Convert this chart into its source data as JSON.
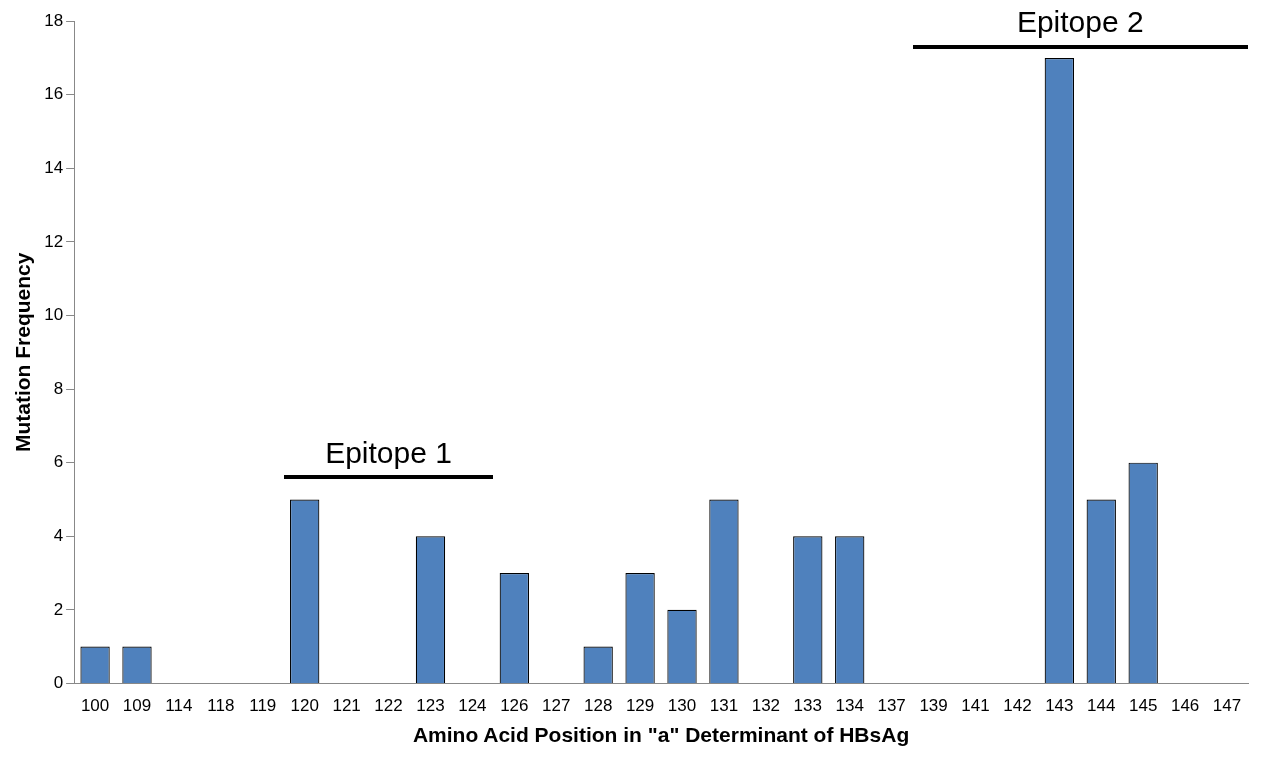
{
  "chart_data": {
    "type": "bar",
    "xlabel": "Amino Acid Position in \"a\" Determinant of HBsAg",
    "ylabel": "Mutation Frequency",
    "categories": [
      "100",
      "109",
      "114",
      "118",
      "119",
      "120",
      "121",
      "122",
      "123",
      "124",
      "126",
      "127",
      "128",
      "129",
      "130",
      "131",
      "132",
      "133",
      "134",
      "137",
      "139",
      "141",
      "142",
      "143",
      "144",
      "145",
      "146",
      "147"
    ],
    "values": [
      1,
      1,
      0,
      0,
      0,
      5,
      0,
      0,
      4,
      0,
      3,
      0,
      1,
      3,
      2,
      5,
      0,
      4,
      4,
      0,
      0,
      0,
      0,
      17,
      5,
      6,
      0,
      0
    ],
    "color": "#4f81bd",
    "ylim": [
      0,
      18
    ],
    "yticks": [
      0,
      2,
      4,
      6,
      8,
      10,
      12,
      14,
      16,
      18
    ],
    "grid": false,
    "legend": false,
    "annotations": [
      "Epitope 1",
      "Epitope 2"
    ]
  }
}
